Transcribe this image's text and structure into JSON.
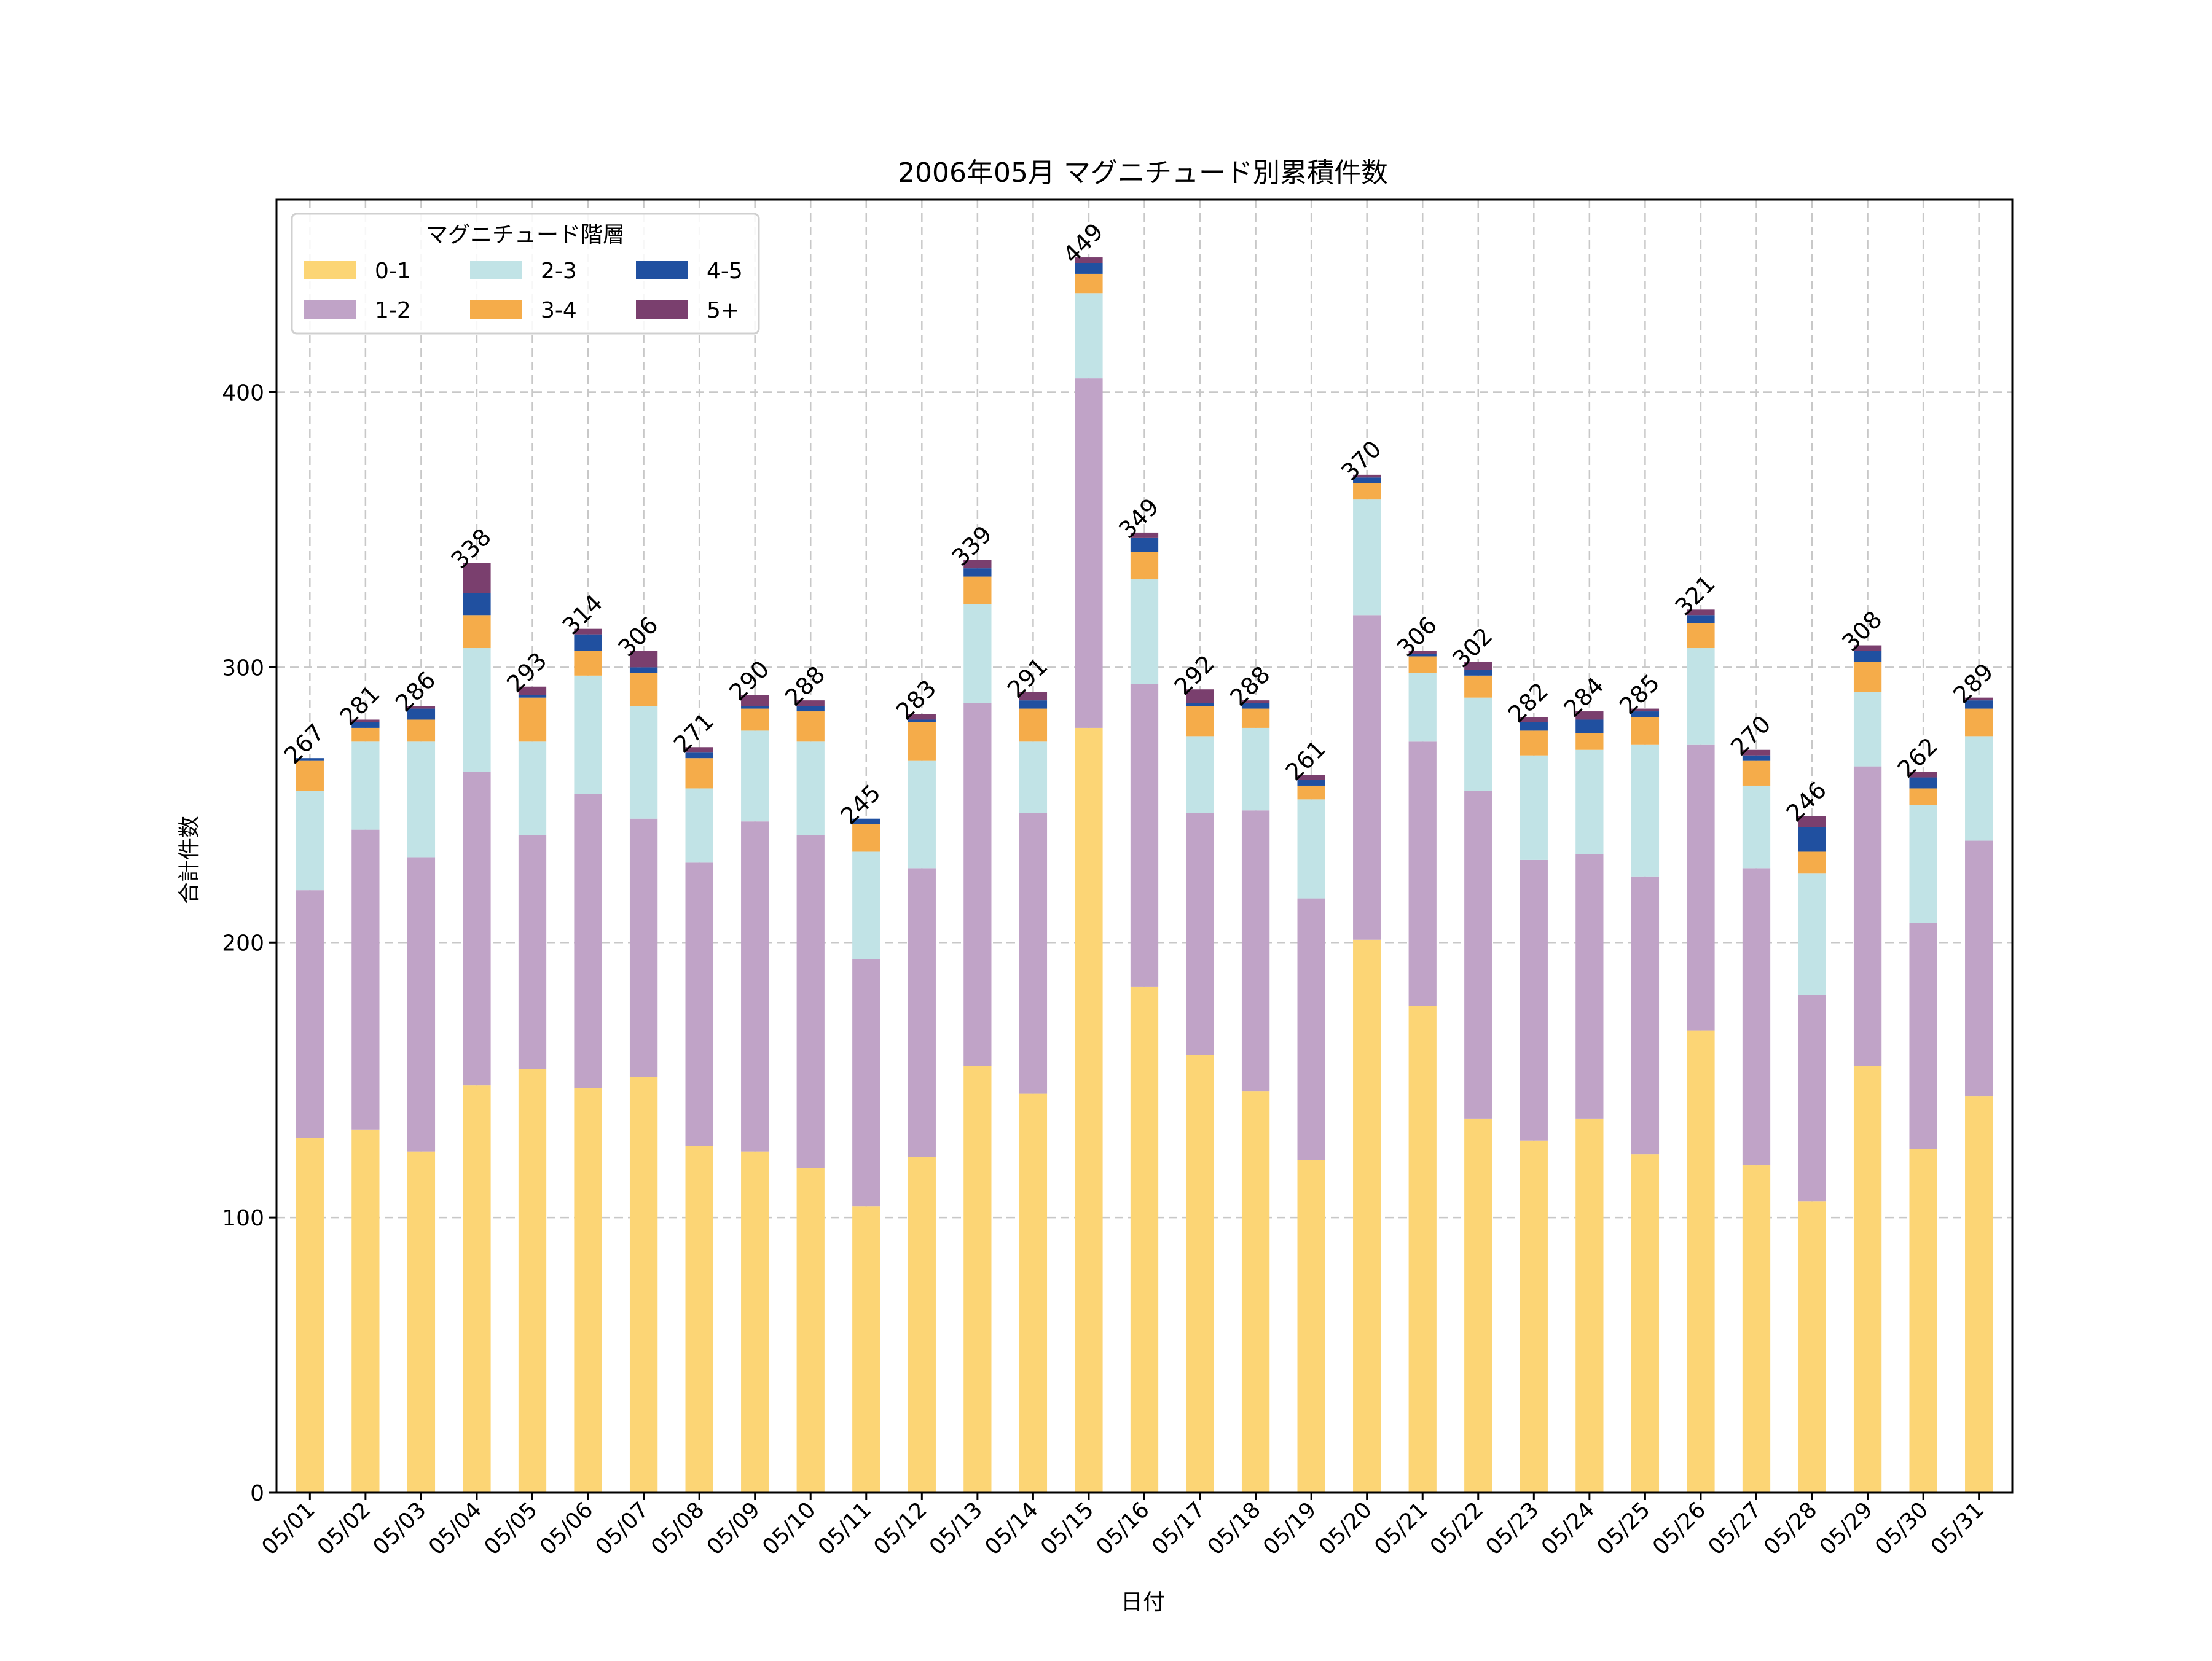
{
  "chart_data": {
    "type": "bar",
    "stacked": true,
    "title": "2006年05月 マグニチュード別累積件数",
    "xlabel": "日付",
    "ylabel": "合計件数",
    "ylim": [
      0,
      470
    ],
    "yticks": [
      0,
      100,
      200,
      300,
      400
    ],
    "grid": true,
    "legend": {
      "title": "マグニチュード階層",
      "placement": "top-left"
    },
    "categories": [
      "05/01",
      "05/02",
      "05/03",
      "05/04",
      "05/05",
      "05/06",
      "05/07",
      "05/08",
      "05/09",
      "05/10",
      "05/11",
      "05/12",
      "05/13",
      "05/14",
      "05/15",
      "05/16",
      "05/17",
      "05/18",
      "05/19",
      "05/20",
      "05/21",
      "05/22",
      "05/23",
      "05/24",
      "05/25",
      "05/26",
      "05/27",
      "05/28",
      "05/29",
      "05/30",
      "05/31"
    ],
    "totals": [
      267,
      281,
      286,
      338,
      293,
      314,
      306,
      271,
      290,
      288,
      245,
      283,
      339,
      291,
      449,
      349,
      292,
      288,
      261,
      370,
      306,
      302,
      282,
      284,
      285,
      321,
      270,
      246,
      308,
      262,
      289
    ],
    "series": [
      {
        "name": "0-1",
        "color": "#fcd575",
        "values": [
          129,
          132,
          124,
          148,
          154,
          147,
          151,
          126,
          124,
          118,
          104,
          122,
          155,
          145,
          278,
          184,
          159,
          146,
          121,
          201,
          177,
          136,
          128,
          136,
          123,
          168,
          119,
          106,
          155,
          125,
          144
        ]
      },
      {
        "name": "1-2",
        "color": "#c0a3c7",
        "values": [
          90,
          109,
          107,
          114,
          85,
          107,
          94,
          103,
          120,
          121,
          90,
          105,
          132,
          102,
          127,
          110,
          88,
          102,
          95,
          118,
          96,
          119,
          102,
          96,
          101,
          104,
          108,
          75,
          109,
          82,
          93
        ]
      },
      {
        "name": "2-3",
        "color": "#c1e3e6",
        "values": [
          36,
          32,
          42,
          45,
          34,
          43,
          41,
          27,
          33,
          34,
          39,
          39,
          36,
          26,
          31,
          38,
          28,
          30,
          36,
          42,
          25,
          34,
          38,
          38,
          48,
          35,
          30,
          44,
          27,
          43,
          38
        ]
      },
      {
        "name": "3-4",
        "color": "#f5ac4a",
        "values": [
          11,
          5,
          8,
          12,
          16,
          9,
          12,
          11,
          8,
          11,
          10,
          14,
          10,
          12,
          7,
          10,
          11,
          7,
          5,
          6,
          6,
          8,
          9,
          6,
          10,
          9,
          9,
          8,
          11,
          6,
          10
        ]
      },
      {
        "name": "4-5",
        "color": "#2050a0",
        "values": [
          1,
          2,
          4,
          8,
          1,
          6,
          2,
          2,
          1,
          2,
          2,
          1,
          3,
          3,
          4,
          5,
          1,
          2,
          2,
          2,
          1,
          2,
          3,
          5,
          2,
          3,
          2,
          9,
          4,
          4,
          3
        ]
      },
      {
        "name": "5+",
        "color": "#7a3f6e",
        "values": [
          0,
          1,
          1,
          11,
          3,
          2,
          6,
          2,
          4,
          2,
          0,
          2,
          3,
          3,
          2,
          2,
          5,
          1,
          2,
          1,
          1,
          3,
          2,
          3,
          1,
          2,
          2,
          4,
          2,
          2,
          1
        ]
      }
    ]
  }
}
